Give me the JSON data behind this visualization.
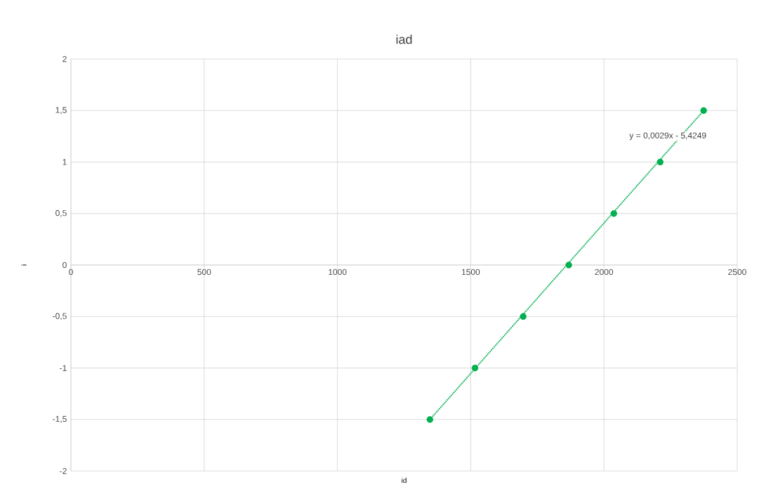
{
  "chart_data": {
    "type": "scatter",
    "title": "iad",
    "xlabel": "id",
    "ylabel": "i",
    "series": [
      {
        "color": "#00b050",
        "x": [
          1347,
          1516,
          1697,
          1868,
          2037,
          2211,
          2374
        ],
        "values": [
          -1.5,
          -1,
          -0.5,
          0,
          0.5,
          1,
          1.5
        ],
        "marker": "circle"
      },
      {
        "type": "line",
        "color": "#00b050",
        "x": [
          1347,
          2374
        ],
        "values": [
          -1.5,
          1.5
        ],
        "line_style": "dotted",
        "marker": "none"
      }
    ],
    "annotations": [
      "y = 0,0029x - 5,4249"
    ],
    "xlim": [
      0,
      2500
    ],
    "xticks": [
      0,
      500,
      1000,
      1500,
      2000,
      2500
    ],
    "ylim": [
      -2,
      2
    ],
    "yticks": [
      -2,
      {
        "value": -1.5,
        "label": "-1,5"
      },
      -1,
      {
        "value": -0.5,
        "label": "-0,5"
      },
      0,
      {
        "value": 0.5,
        "label": "0,5"
      },
      1,
      {
        "value": 1.5,
        "label": "1,5"
      },
      2
    ],
    "grid": true
  }
}
